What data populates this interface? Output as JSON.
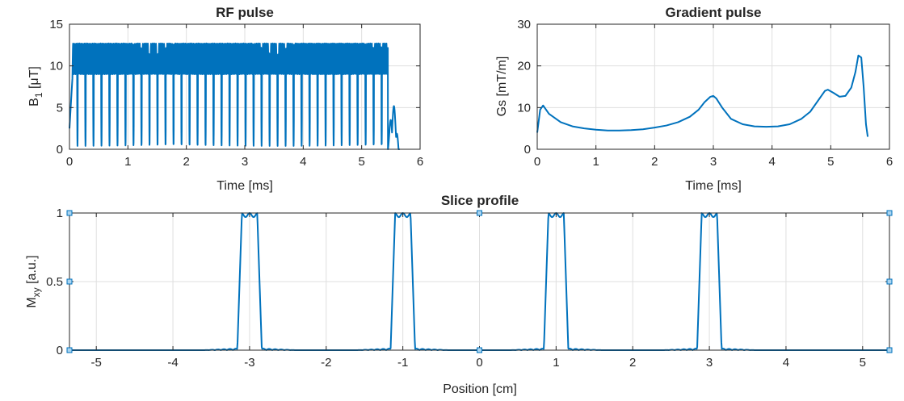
{
  "colors": {
    "series": "#0072bd",
    "grid": "#dfdfdf",
    "axis": "#262626",
    "background": "#ffffff"
  },
  "chart_data": [
    {
      "type": "line",
      "title": "RF pulse",
      "xlabel": "Time [ms]",
      "ylabel_base": "B",
      "ylabel_sub": "1",
      "ylabel_unit": " [μT]",
      "xlim": [
        0,
        6
      ],
      "ylim": [
        0,
        15
      ],
      "xticks": [
        0,
        1,
        2,
        3,
        4,
        5,
        6
      ],
      "yticks": [
        0,
        5,
        10,
        15
      ],
      "grid": true,
      "description": "Multiband RF pulse magnitude, dense oscillation between ~0.5 and ~12.7 uT up to ~5.45 ms, then decays to 0 near 5.65 ms",
      "envelope": {
        "start": 0.0,
        "end": 5.45,
        "base": 9.0,
        "max": 12.7,
        "min": 0.4,
        "tail_peak": 5.3,
        "tail_end": 5.65
      }
    },
    {
      "type": "line",
      "title": "Gradient pulse",
      "xlabel": "Time [ms]",
      "ylabel": "Gs [mT/m]",
      "xlim": [
        0,
        6
      ],
      "ylim": [
        0,
        30
      ],
      "xticks": [
        0,
        1,
        2,
        3,
        4,
        5,
        6
      ],
      "yticks": [
        0,
        10,
        20,
        30
      ],
      "grid": true,
      "series": [
        {
          "name": "Gs",
          "x": [
            0.0,
            0.05,
            0.1,
            0.2,
            0.4,
            0.6,
            0.8,
            1.0,
            1.2,
            1.4,
            1.6,
            1.8,
            2.0,
            2.2,
            2.4,
            2.6,
            2.75,
            2.85,
            2.95,
            3.0,
            3.05,
            3.15,
            3.3,
            3.5,
            3.7,
            3.9,
            4.1,
            4.3,
            4.5,
            4.65,
            4.8,
            4.9,
            4.95,
            5.05,
            5.15,
            5.25,
            5.35,
            5.42,
            5.47,
            5.52,
            5.56,
            5.6,
            5.63
          ],
          "y": [
            4.0,
            9.5,
            10.5,
            8.5,
            6.5,
            5.5,
            5.0,
            4.7,
            4.5,
            4.5,
            4.6,
            4.8,
            5.2,
            5.7,
            6.5,
            7.8,
            9.5,
            11.3,
            12.6,
            12.8,
            12.2,
            10.0,
            7.3,
            6.0,
            5.5,
            5.4,
            5.5,
            6.0,
            7.3,
            9.0,
            12.0,
            14.0,
            14.3,
            13.5,
            12.6,
            12.8,
            14.8,
            18.5,
            22.5,
            22.0,
            15.0,
            6.0,
            3.0
          ]
        }
      ]
    },
    {
      "type": "line",
      "title": "Slice profile",
      "xlabel": "Position [cm]",
      "ylabel_base": "M",
      "ylabel_sub": "xy",
      "ylabel_unit": " [a.u.]",
      "xlim": [
        -5.35,
        5.35
      ],
      "ylim": [
        0,
        1
      ],
      "xticks": [
        -5,
        -4,
        -3,
        -2,
        -1,
        0,
        1,
        2,
        3,
        4,
        5
      ],
      "yticks": [
        0,
        0.5,
        1
      ],
      "grid": true,
      "slice_centers": [
        -3,
        -1,
        1,
        3
      ],
      "slice_halfwidth": 0.1,
      "peak": 1.0
    }
  ]
}
